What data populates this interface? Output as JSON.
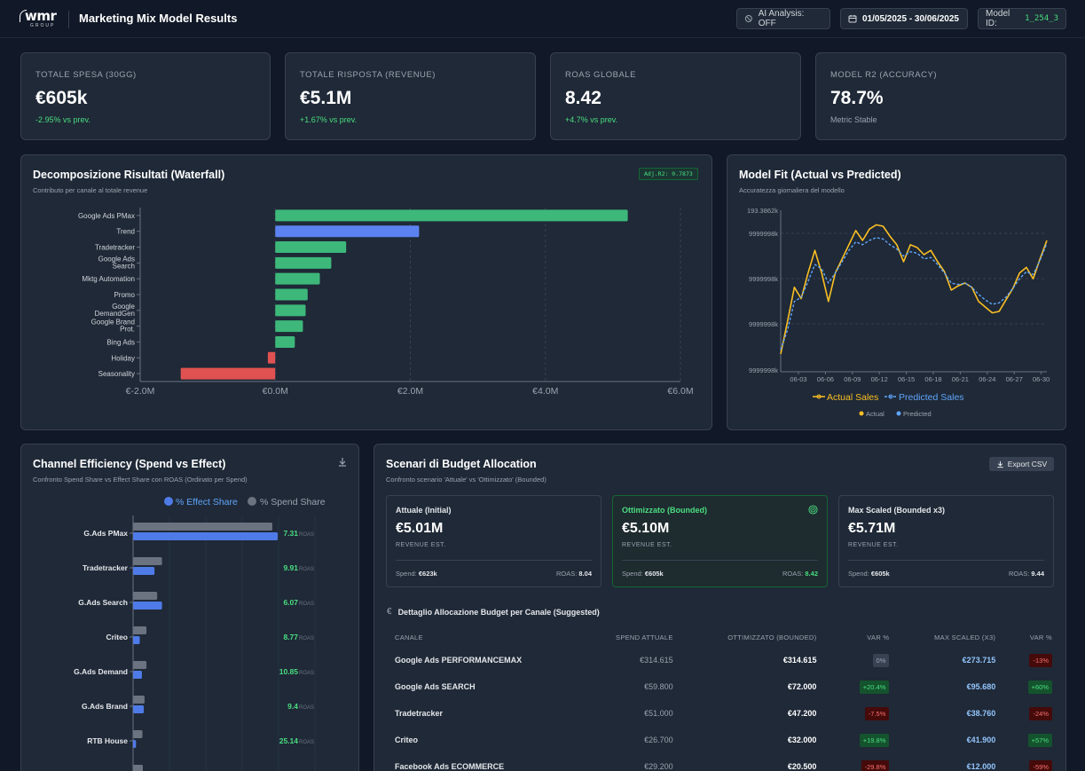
{
  "header": {
    "logo_text": "wmr",
    "logo_sub": "GROUP",
    "title": "Marketing Mix Model Results",
    "ai_label": "AI Analysis: OFF",
    "date_range": "01/05/2025 - 30/06/2025",
    "model_label": "Model ID:",
    "model_id": "1_254_3"
  },
  "kpis": [
    {
      "label": "TOTALE SPESA (30GG)",
      "value": "€605k",
      "delta": "-2.95% vs prev."
    },
    {
      "label": "TOTALE RISPOSTA (REVENUE)",
      "value": "€5.1M",
      "delta": "+1.67% vs prev."
    },
    {
      "label": "ROAS GLOBALE",
      "value": "8.42",
      "delta": "+4.7% vs prev."
    },
    {
      "label": "MODEL R2 (ACCURACY)",
      "value": "78.7%",
      "delta": "Metric Stable"
    }
  ],
  "waterfall": {
    "title": "Decomposizione Risultati (Waterfall)",
    "subtitle": "Contributo per canale al totale revenue",
    "badge": "Adj.R2: 0.7873"
  },
  "model_fit": {
    "title": "Model Fit (Actual vs Predicted)",
    "subtitle": "Accuratezza giornaliera del modello",
    "legend_actual": "Actual Sales",
    "legend_predicted": "Predicted Sales",
    "mini_actual": "Actual",
    "mini_predicted": "Predicted"
  },
  "efficiency": {
    "title": "Channel Efficiency (Spend vs Effect)",
    "subtitle": "Confronto Spend Share vs Effect Share con ROAS (Ordinato per Spend)",
    "legend_effect": "% Effect Share",
    "legend_spend": "% Spend Share",
    "roas_suffix": "ROAS"
  },
  "budget": {
    "title": "Scenari di Budget Allocation",
    "subtitle": "Confronto scenario 'Attuale' vs 'Ottimizzato' (Bounded)",
    "export_label": "Export CSV",
    "scenarios": [
      {
        "name": "Attuale (Initial)",
        "value": "€5.01M",
        "est": "REVENUE EST.",
        "spend_label": "Spend:",
        "spend": "€623k",
        "roas_label": "ROAS:",
        "roas": "8.04"
      },
      {
        "name": "Ottimizzato (Bounded)",
        "value": "€5.10M",
        "est": "REVENUE EST.",
        "spend_label": "Spend:",
        "spend": "€605k",
        "roas_label": "ROAS:",
        "roas": "8.42"
      },
      {
        "name": "Max Scaled (Bounded x3)",
        "value": "€5.71M",
        "est": "REVENUE EST.",
        "spend_label": "Spend:",
        "spend": "€605k",
        "roas_label": "ROAS:",
        "roas": "9.44"
      }
    ],
    "detail_title": "Dettaglio Allocazione Budget per Canale (Suggested)",
    "columns": [
      "CANALE",
      "SPEND ATTUALE",
      "OTTIMIZZATO (BOUNDED)",
      "VAR %",
      "MAX SCALED (X3)",
      "VAR %"
    ],
    "rows": [
      [
        "Google Ads PERFORMANCEMAX",
        "€314.615",
        "€314.615",
        "0%",
        "€273.715",
        "-13%"
      ],
      [
        "Google Ads SEARCH",
        "€59.800",
        "€72.000",
        "+20.4%",
        "€95.680",
        "+60%"
      ],
      [
        "Tradetracker",
        "€51.000",
        "€47.200",
        "-7.5%",
        "€38.760",
        "-24%"
      ],
      [
        "Criteo",
        "€26.700",
        "€32.000",
        "+19.8%",
        "€41.900",
        "+57%"
      ],
      [
        "Facebook Ads ECOMMERCE",
        "€29.200",
        "€20.500",
        "-29.8%",
        "€12.000",
        "-59%"
      ]
    ]
  },
  "chart_data": [
    {
      "type": "bar",
      "orientation": "horizontal",
      "title": "Decomposizione Risultati (Waterfall)",
      "categories": [
        "Google Ads PMax",
        "Trend",
        "Tradetracker",
        "Google Ads Search",
        "Mktg Automation",
        "Promo",
        "Google DemandGen",
        "Google Brand Prot.",
        "Bing Ads",
        "Holiday",
        "Seasonality"
      ],
      "values": [
        5.22,
        2.13,
        1.05,
        0.83,
        0.66,
        0.48,
        0.45,
        0.41,
        0.29,
        -0.11,
        -1.4
      ],
      "colors": [
        "#3db87a",
        "#5b82f0",
        "#3db87a",
        "#3db87a",
        "#3db87a",
        "#3db87a",
        "#3db87a",
        "#3db87a",
        "#3db87a",
        "#e05252",
        "#e05252"
      ],
      "xlim": [
        -2.0,
        6.0
      ],
      "xticks": [
        "€-2.0M",
        "€0.0M",
        "€2.0M",
        "€4.0M",
        "€6.0M"
      ]
    },
    {
      "type": "line",
      "title": "Model Fit (Actual vs Predicted)",
      "xticks": [
        "06-03",
        "06-06",
        "06-09",
        "06-12",
        "06-15",
        "06-18",
        "06-21",
        "06-24",
        "06-27",
        "06-30"
      ],
      "yticks": [
        "193.3862k",
        "9999998k",
        "9999998k",
        "9999998k",
        "9999998k"
      ],
      "series": [
        {
          "name": "Actual Sales",
          "color": "#fbbf24",
          "values": [
            0.05,
            0.28,
            0.52,
            0.44,
            0.62,
            0.78,
            0.62,
            0.42,
            0.62,
            0.72,
            0.82,
            0.92,
            0.85,
            0.93,
            0.96,
            0.95,
            0.88,
            0.82,
            0.7,
            0.82,
            0.8,
            0.75,
            0.78,
            0.7,
            0.63,
            0.5,
            0.53,
            0.55,
            0.52,
            0.42,
            0.38,
            0.34,
            0.35,
            0.43,
            0.51,
            0.62,
            0.66,
            0.58,
            0.72,
            0.85
          ]
        },
        {
          "name": "Predicted Sales",
          "color": "#60a5fa",
          "values": [
            0.08,
            0.22,
            0.42,
            0.45,
            0.56,
            0.68,
            0.65,
            0.55,
            0.62,
            0.7,
            0.78,
            0.84,
            0.82,
            0.85,
            0.87,
            0.86,
            0.82,
            0.79,
            0.74,
            0.77,
            0.76,
            0.72,
            0.73,
            0.68,
            0.62,
            0.55,
            0.54,
            0.55,
            0.52,
            0.47,
            0.43,
            0.4,
            0.41,
            0.45,
            0.51,
            0.58,
            0.63,
            0.61,
            0.71,
            0.83
          ]
        }
      ]
    },
    {
      "type": "bar",
      "orientation": "horizontal",
      "title": "Channel Efficiency (Spend vs Effect)",
      "categories": [
        "G.Ads PMax",
        "Tradetracker",
        "G.Ads Search",
        "Criteo",
        "G.Ads Demand",
        "G.Ads Brand",
        "RTB House"
      ],
      "series": [
        {
          "name": "% Spend Share",
          "color": "#6b7280",
          "values": [
            52.0,
            10.8,
            9.0,
            5.0,
            5.0,
            4.3,
            3.5
          ]
        },
        {
          "name": "% Effect Share",
          "color": "#4f7be8",
          "values": [
            54.0,
            8.0,
            10.8,
            2.5,
            3.3,
            4.0,
            1.1
          ]
        }
      ],
      "roas": [
        7.31,
        9.91,
        6.07,
        8.77,
        10.85,
        9.4,
        25.14
      ]
    }
  ]
}
